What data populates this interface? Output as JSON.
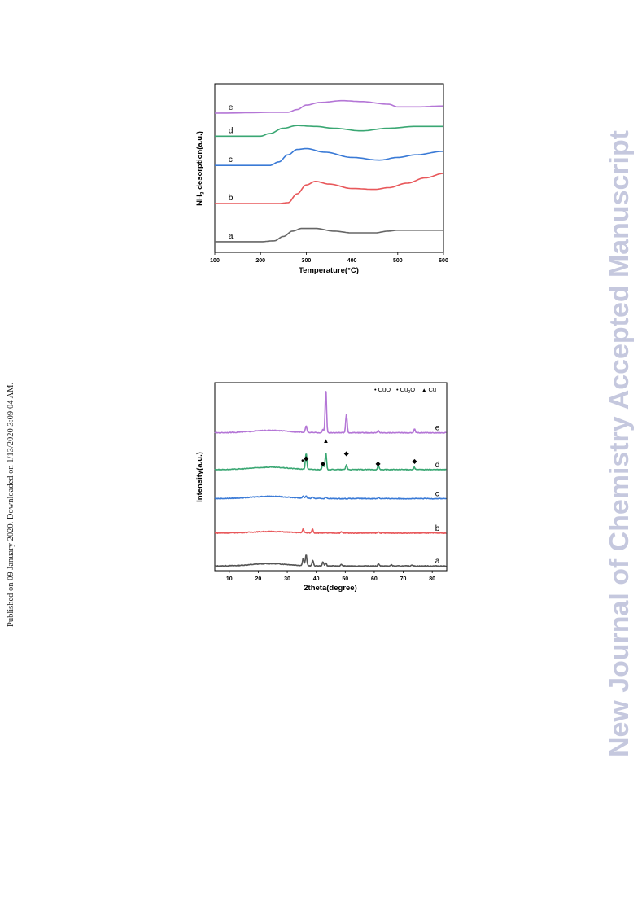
{
  "page": {
    "side_note": "Published on 09 January 2020. Downloaded on 1/13/2020 3:09:04 AM.",
    "watermark": "New Journal of Chemistry Accepted Manuscript"
  },
  "chart_data": [
    {
      "type": "line",
      "xlabel_main": "Temperature(",
      "xlabel_unit": "°C)",
      "ylabel_prefix": "NH",
      "ylabel_sub": "3",
      "ylabel_suffix": " desorption(a.u.)",
      "xlim": [
        100,
        600
      ],
      "xticks": [
        100,
        200,
        300,
        400,
        500,
        600
      ],
      "yticks_shown": false,
      "grid": false,
      "series": [
        {
          "name": "a",
          "color": "#666666",
          "points": [
            [
              100,
              12
            ],
            [
              200,
              12
            ],
            [
              230,
              13
            ],
            [
              250,
              18
            ],
            [
              270,
              24
            ],
            [
              290,
              27
            ],
            [
              320,
              27
            ],
            [
              360,
              24
            ],
            [
              400,
              22
            ],
            [
              450,
              22
            ],
            [
              480,
              24
            ],
            [
              500,
              25
            ],
            [
              600,
              25
            ]
          ]
        },
        {
          "name": "b",
          "color": "#e8585b",
          "points": [
            [
              100,
              55
            ],
            [
              240,
              55
            ],
            [
              260,
              56
            ],
            [
              280,
              66
            ],
            [
              300,
              76
            ],
            [
              320,
              80
            ],
            [
              350,
              77
            ],
            [
              400,
              72
            ],
            [
              450,
              71
            ],
            [
              480,
              73
            ],
            [
              520,
              78
            ],
            [
              560,
              84
            ],
            [
              600,
              89
            ]
          ]
        },
        {
          "name": "c",
          "color": "#3a7ad6",
          "points": [
            [
              100,
              98
            ],
            [
              220,
              98
            ],
            [
              240,
              102
            ],
            [
              260,
              110
            ],
            [
              280,
              116
            ],
            [
              300,
              117
            ],
            [
              340,
              113
            ],
            [
              400,
              107
            ],
            [
              460,
              104
            ],
            [
              500,
              107
            ],
            [
              540,
              110
            ],
            [
              600,
              114
            ]
          ]
        },
        {
          "name": "d",
          "color": "#3aa773",
          "points": [
            [
              100,
              131
            ],
            [
              200,
              131
            ],
            [
              220,
              134
            ],
            [
              250,
              140
            ],
            [
              280,
              143
            ],
            [
              320,
              142
            ],
            [
              360,
              140
            ],
            [
              420,
              137
            ],
            [
              480,
              140
            ],
            [
              540,
              142
            ],
            [
              600,
              142
            ]
          ]
        },
        {
          "name": "e",
          "color": "#b476d6",
          "points": [
            [
              100,
              157
            ],
            [
              260,
              158
            ],
            [
              280,
              161
            ],
            [
              300,
              166
            ],
            [
              330,
              169
            ],
            [
              380,
              171
            ],
            [
              420,
              170
            ],
            [
              480,
              167
            ],
            [
              500,
              164
            ],
            [
              540,
              164
            ],
            [
              600,
              165
            ]
          ]
        }
      ]
    },
    {
      "type": "line",
      "xlabel": "2theta(degree)",
      "ylabel": "Intensity(a.u.)",
      "xlim": [
        5,
        85
      ],
      "xticks": [
        10,
        20,
        30,
        40,
        50,
        60,
        70,
        80
      ],
      "yticks_shown": false,
      "grid": false,
      "legend": {
        "position": "top-right",
        "items": [
          {
            "marker": "•",
            "label": "CuO"
          },
          {
            "marker": "•",
            "label_main": "Cu",
            "label_sub": "2",
            "label_end": "O"
          },
          {
            "marker": "▲",
            "label": "Cu"
          }
        ]
      },
      "peak_markers": [
        {
          "symbol": "•",
          "x": 35.3,
          "y": 137
        },
        {
          "symbol": "◆",
          "x": 36.5,
          "y": 141
        },
        {
          "symbol": "◆",
          "x": 42.3,
          "y": 134
        },
        {
          "symbol": "▲",
          "x": 43.3,
          "y": 163
        },
        {
          "symbol": "◆",
          "x": 50.4,
          "y": 147
        },
        {
          "symbol": "◆",
          "x": 61.3,
          "y": 134
        },
        {
          "symbol": "◆",
          "x": 73.9,
          "y": 137
        }
      ],
      "series": [
        {
          "name": "a",
          "color": "#555555",
          "baseline": 6,
          "hump": 3,
          "peaks": [
            [
              35.5,
              10
            ],
            [
              36.5,
              14
            ],
            [
              38.8,
              7
            ],
            [
              42.3,
              5
            ],
            [
              43.3,
              4
            ],
            [
              48.7,
              2
            ],
            [
              61.5,
              3
            ],
            [
              66,
              1.5
            ],
            [
              73,
              1.5
            ]
          ]
        },
        {
          "name": "b",
          "color": "#e8585b",
          "baseline": 48,
          "hump": 2,
          "peaks": [
            [
              35.5,
              5
            ],
            [
              38.7,
              5
            ],
            [
              48.7,
              1.5
            ],
            [
              61.5,
              1.5
            ]
          ]
        },
        {
          "name": "c",
          "color": "#3a7ad6",
          "baseline": 92,
          "hump": 3,
          "peaks": [
            [
              35.5,
              3
            ],
            [
              36.5,
              3
            ],
            [
              38.8,
              2
            ],
            [
              43.3,
              2
            ],
            [
              61.5,
              1.5
            ]
          ]
        },
        {
          "name": "d",
          "color": "#3aa773",
          "baseline": 129,
          "hump": 3,
          "peaks": [
            [
              36.5,
              21
            ],
            [
              42.3,
              7
            ],
            [
              43.3,
              22
            ],
            [
              50.4,
              6
            ],
            [
              61.4,
              5
            ],
            [
              73.8,
              3
            ]
          ]
        },
        {
          "name": "e",
          "color": "#b476d6",
          "baseline": 176,
          "hump": 3,
          "peaks": [
            [
              36.5,
              9
            ],
            [
              42.3,
              4
            ],
            [
              43.3,
              57
            ],
            [
              50.4,
              24
            ],
            [
              61.4,
              3
            ],
            [
              73.9,
              5
            ]
          ]
        }
      ]
    }
  ]
}
